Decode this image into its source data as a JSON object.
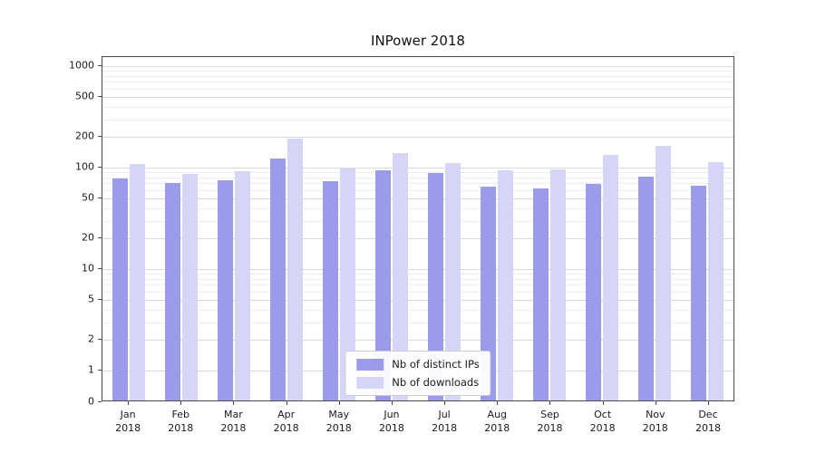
{
  "chart_data": {
    "type": "bar",
    "title": "INPower 2018",
    "categories": [
      "Jan",
      "Feb",
      "Mar",
      "Apr",
      "May",
      "Jun",
      "Jul",
      "Aug",
      "Sep",
      "Oct",
      "Nov",
      "Dec"
    ],
    "year_label": "2018",
    "series": [
      {
        "name": "Nb of distinct IPs",
        "color": "#9b9bec",
        "values": [
          75,
          68,
          72,
          118,
          70,
          90,
          85,
          62,
          60,
          66,
          79,
          64
        ]
      },
      {
        "name": "Nb of downloads",
        "color": "#d5d5f8",
        "values": [
          105,
          83,
          89,
          185,
          94,
          133,
          106,
          91,
          93,
          128,
          158,
          108
        ]
      }
    ],
    "yscale": "symlog",
    "yticks": [
      0,
      1,
      2,
      5,
      10,
      20,
      50,
      100,
      200,
      500,
      1000
    ],
    "ylim": [
      0,
      1000
    ],
    "grid": "horizontal",
    "legend_position": "lower center"
  }
}
